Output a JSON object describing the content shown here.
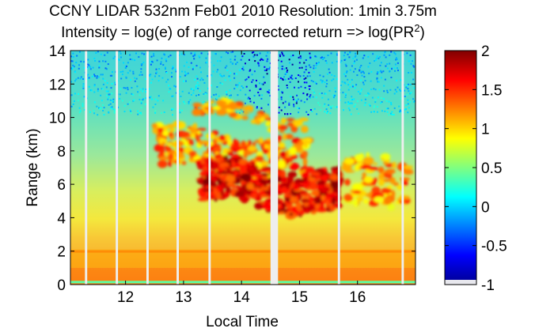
{
  "chart_data": {
    "type": "heatmap",
    "title": "CCNY LIDAR 532nm Feb01 2010 Resolution: 1min 3.75m",
    "subtitle_prefix": "Intensity = log(e) of range corrected return => log(PR",
    "subtitle_sup": "2",
    "subtitle_suffix": ")",
    "xlabel": "Local Time",
    "ylabel": "Range (km)",
    "xlim": [
      11.05,
      17.0
    ],
    "ylim": [
      0,
      14
    ],
    "x_ticks": [
      12,
      13,
      14,
      15,
      16
    ],
    "y_ticks": [
      0,
      2,
      4,
      6,
      8,
      10,
      12,
      14
    ],
    "data_gaps_local_time": [
      11.32,
      11.85,
      12.38,
      12.9,
      13.45,
      [
        14.5,
        14.63
      ],
      15.68,
      16.78
    ],
    "colorbar": {
      "range": [
        -1,
        2
      ],
      "ticks": [
        "2",
        "1.5",
        "1",
        "0.5",
        "0",
        "-0.5",
        "-1"
      ],
      "tick_values": [
        2,
        1.5,
        1,
        0.5,
        0,
        -0.5,
        -1
      ]
    },
    "features": [
      {
        "name": "near-surface layer",
        "range_km": [
          0,
          1
        ],
        "value": 1.3
      },
      {
        "name": "boundary layer",
        "range_km": [
          1,
          2.1
        ],
        "value": 1.15
      },
      {
        "name": "cloud layer",
        "local_time": [
          13.3,
          15.7
        ],
        "range_km": [
          5,
          7.5
        ],
        "value": 2.0
      },
      {
        "name": "upper cloud",
        "local_time": [
          12.5,
          15.2
        ],
        "range_km": [
          7,
          9.5
        ],
        "value": 1.7
      },
      {
        "name": "cirrus",
        "local_time": [
          13.2,
          15.1
        ],
        "range_km": [
          10,
          10.8
        ],
        "value": 1.5
      }
    ]
  }
}
